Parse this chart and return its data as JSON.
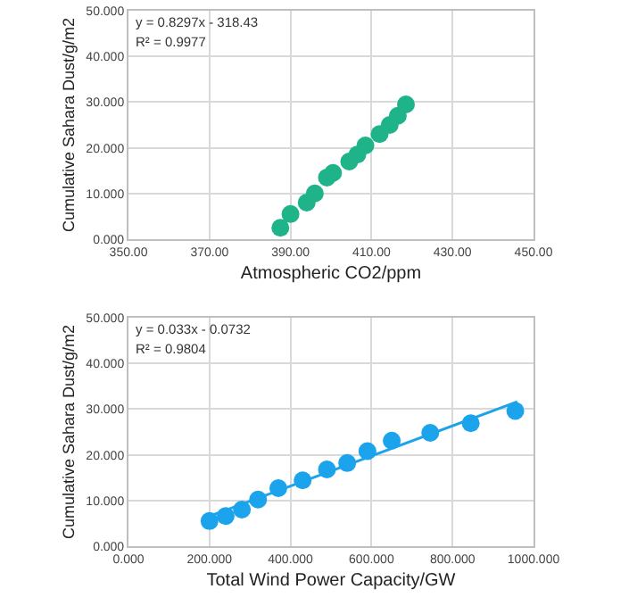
{
  "chart_data": [
    {
      "type": "scatter",
      "xlabel": "Atmospheric CO2/ppm",
      "ylabel": "Cumulative Sahara Dust/g/m2",
      "annotations": [
        "y = 0.8297x - 318.43",
        "R² = 0.9977"
      ],
      "marker": "circle",
      "grid": true,
      "xlim": [
        350,
        450
      ],
      "xticks": [
        {
          "value": 350,
          "label": "350.00"
        },
        {
          "value": 370,
          "label": "370.00"
        },
        {
          "value": 390,
          "label": "390.00"
        },
        {
          "value": 410,
          "label": "410.00"
        },
        {
          "value": 430,
          "label": "430.00"
        },
        {
          "value": 450,
          "label": "450.00"
        }
      ],
      "ylim": [
        0,
        50
      ],
      "yticks": [
        {
          "value": 0,
          "label": "0.000"
        },
        {
          "value": 10,
          "label": "10.000"
        },
        {
          "value": 20,
          "label": "20.000"
        },
        {
          "value": 30,
          "label": "30.000"
        },
        {
          "value": 40,
          "label": "40.000"
        },
        {
          "value": 50,
          "label": "50.000"
        }
      ],
      "series": [
        {
          "color": "#1fb38a",
          "x": [
            387.5,
            390,
            391.5,
            393,
            394,
            396,
            398,
            399,
            400.5,
            404.5,
            406.5,
            408.5,
            412,
            414.5,
            416.5,
            418.5
          ],
          "values": [
            2.5,
            5.5,
            null,
            null,
            8,
            10,
            null,
            13.5,
            14.5,
            17,
            18.5,
            20.5,
            23,
            25,
            27,
            29.5
          ]
        }
      ]
    },
    {
      "type": "scatter",
      "xlabel": "Total Wind Power Capacity/GW",
      "ylabel": "Cumulative Sahara Dust/g/m2",
      "annotations": [
        "y = 0.033x - 0.0732",
        "R² = 0.9804"
      ],
      "marker": "circle",
      "grid": true,
      "xlim": [
        0,
        1000
      ],
      "xticks": [
        {
          "value": 0,
          "label": "0.000"
        },
        {
          "value": 200,
          "label": "200.000"
        },
        {
          "value": 400,
          "label": "400.000"
        },
        {
          "value": 600,
          "label": "600.000"
        },
        {
          "value": 800,
          "label": "800.000"
        },
        {
          "value": 1000,
          "label": "1000.000"
        }
      ],
      "ylim": [
        0,
        50
      ],
      "yticks": [
        {
          "value": 0,
          "label": "0.000"
        },
        {
          "value": 10,
          "label": "10.000"
        },
        {
          "value": 20,
          "label": "20.000"
        },
        {
          "value": 30,
          "label": "30.000"
        },
        {
          "value": 40,
          "label": "40.000"
        },
        {
          "value": 50,
          "label": "50.000"
        }
      ],
      "series": [
        {
          "color": "#1ba3ec",
          "x": [
            200,
            240,
            280,
            320,
            370,
            430,
            490,
            540,
            590,
            650,
            745,
            845,
            955
          ],
          "values": [
            5.5,
            6.6,
            8,
            10.2,
            12.7,
            14.4,
            16.8,
            18.2,
            20.8,
            23.1,
            24.8,
            26.9,
            29.6
          ]
        },
        {
          "type": "line",
          "marker": "none",
          "color": "#1ba3ec",
          "x": [
            195,
            960
          ],
          "values": [
            6.4,
            31.6
          ]
        }
      ]
    }
  ]
}
